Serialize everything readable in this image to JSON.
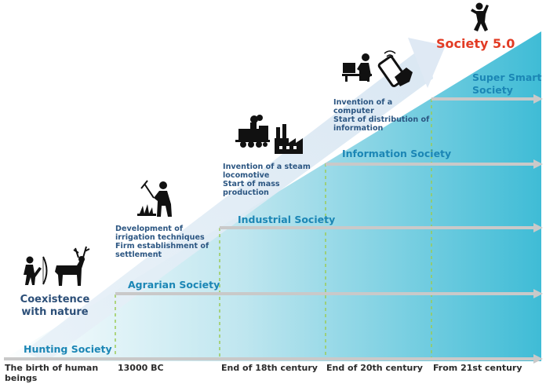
{
  "diagram": {
    "stage_label": "Society 5.0",
    "eras": [
      {
        "id": "hunting",
        "label": "Hunting Society"
      },
      {
        "id": "agrarian",
        "label": "Agrarian Society"
      },
      {
        "id": "industrial",
        "label": "Industrial Society"
      },
      {
        "id": "information",
        "label": "Information Society"
      },
      {
        "id": "super_smart",
        "label": "Super Smart Society"
      }
    ],
    "timeline": [
      "The birth of human beings",
      "13000 BC",
      "End of 18th century",
      "End of 20th century",
      "From 21st century"
    ],
    "descriptions": {
      "coexistence": "Coexistence with nature",
      "agrarian": [
        "Development of irrigation techniques",
        "Firm establishment of settlement"
      ],
      "industrial": [
        "Invention of a steam locomotive",
        "Start of mass production"
      ],
      "information": [
        "Invention of a computer",
        "Start of distribution of information"
      ]
    },
    "colors": {
      "gradient_light": "#ffffff",
      "gradient_dark": "#3fbcd6",
      "arrow": "#dfe9f4",
      "era_text": "#1b86b5",
      "society5": "#e23b24",
      "dashed_line": "#9ccb57"
    },
    "icons": [
      "archer-icon",
      "deer-icon",
      "farmer-icon",
      "steam-locomotive-icon",
      "factory-icon",
      "computer-worker-icon",
      "smartphone-icon",
      "jumping-person-icon"
    ]
  }
}
